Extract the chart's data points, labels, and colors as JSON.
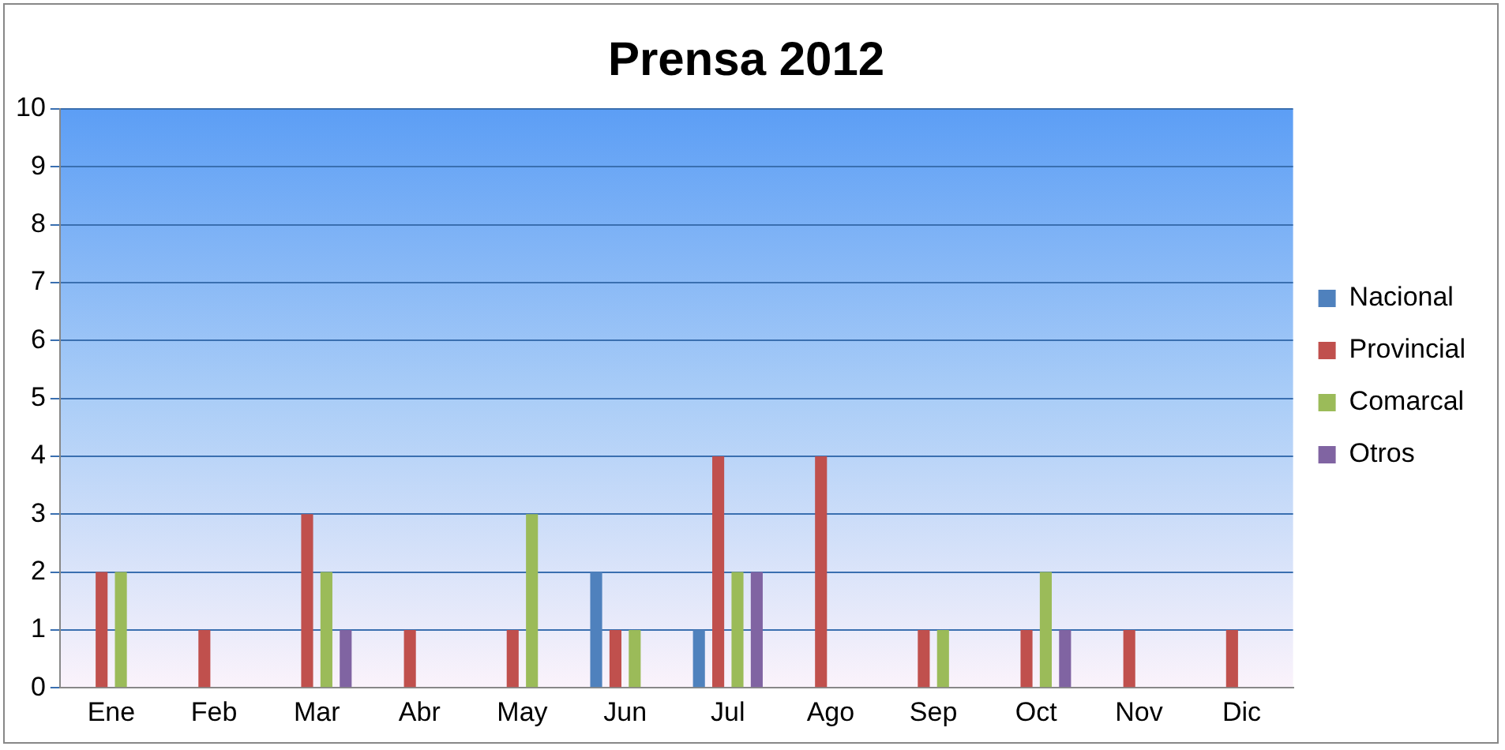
{
  "chart_data": {
    "type": "bar",
    "title": "Prensa 2012",
    "categories": [
      "Ene",
      "Feb",
      "Mar",
      "Abr",
      "May",
      "Jun",
      "Jul",
      "Ago",
      "Sep",
      "Oct",
      "Nov",
      "Dic"
    ],
    "series": [
      {
        "name": "Nacional",
        "color": "#4f81bd",
        "values": [
          0,
          0,
          0,
          0,
          0,
          2,
          1,
          0,
          0,
          0,
          0,
          0
        ]
      },
      {
        "name": "Provincial",
        "color": "#c0504d",
        "values": [
          2,
          1,
          3,
          1,
          1,
          1,
          4,
          4,
          1,
          1,
          1,
          1
        ]
      },
      {
        "name": "Comarcal",
        "color": "#9bbb59",
        "values": [
          2,
          0,
          2,
          0,
          3,
          1,
          2,
          0,
          1,
          2,
          0,
          0
        ]
      },
      {
        "name": "Otros",
        "color": "#8064a2",
        "values": [
          0,
          0,
          1,
          0,
          0,
          0,
          2,
          0,
          0,
          1,
          0,
          0
        ]
      }
    ],
    "ylim": [
      0,
      10
    ],
    "yticks": [
      0,
      1,
      2,
      3,
      4,
      5,
      6,
      7,
      8,
      9,
      10
    ],
    "grid": "y",
    "legend": "right"
  }
}
